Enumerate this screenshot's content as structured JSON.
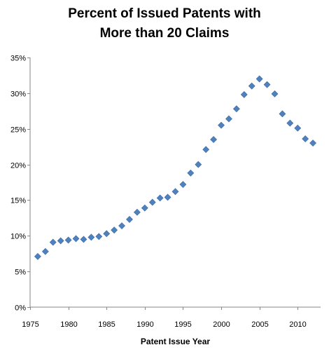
{
  "chart_data": {
    "type": "scatter",
    "title_line1": "Percent of Issued Patents with",
    "title_line2": "More than 20 Claims",
    "xlabel": "Patent Issue Year",
    "ylabel": "",
    "xlim": [
      1975,
      2013
    ],
    "ylim": [
      0,
      35
    ],
    "x_ticks": [
      1975,
      1980,
      1985,
      1990,
      1995,
      2000,
      2005,
      2010
    ],
    "x_tick_labels": [
      "1975",
      "1980",
      "1985",
      "1990",
      "1995",
      "2000",
      "2005",
      "2010"
    ],
    "y_ticks": [
      0,
      5,
      10,
      15,
      20,
      25,
      30,
      35
    ],
    "y_tick_labels": [
      "0%",
      "5%",
      "10%",
      "15%",
      "20%",
      "25%",
      "30%",
      "35%"
    ],
    "grid": false,
    "legend": "none",
    "marker": "diamond",
    "marker_color": "#4F81BD",
    "x": [
      1976,
      1977,
      1978,
      1979,
      1980,
      1981,
      1982,
      1983,
      1984,
      1985,
      1986,
      1987,
      1988,
      1989,
      1990,
      1991,
      1992,
      1993,
      1994,
      1995,
      1996,
      1997,
      1998,
      1999,
      2000,
      2001,
      2002,
      2003,
      2004,
      2005,
      2006,
      2007,
      2008,
      2009,
      2010,
      2011,
      2012
    ],
    "y": [
      7.1,
      7.8,
      9.1,
      9.3,
      9.4,
      9.6,
      9.5,
      9.8,
      9.9,
      10.3,
      10.8,
      11.4,
      12.3,
      13.3,
      13.9,
      14.7,
      15.3,
      15.4,
      16.2,
      17.2,
      18.8,
      20.0,
      22.1,
      23.5,
      25.5,
      26.4,
      27.8,
      29.8,
      31.0,
      32.0,
      31.2,
      29.9,
      27.1,
      25.8,
      25.1,
      23.6,
      23.0
    ]
  }
}
